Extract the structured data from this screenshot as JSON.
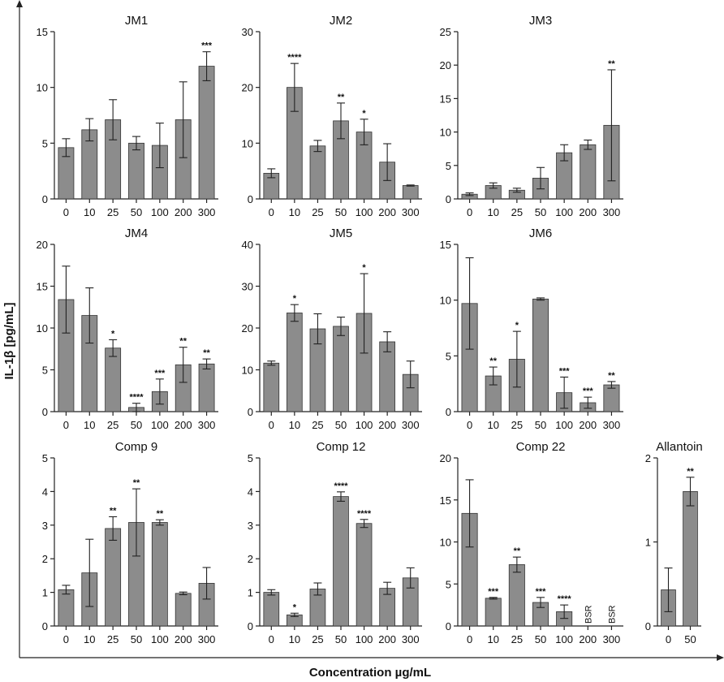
{
  "figure": {
    "ylabel": "IL-1β [pg/mL]",
    "xlabel": "Concentration µg/mL"
  },
  "colors": {
    "bar": "#8c8c8c",
    "axis": "#222222",
    "text": "#111111"
  },
  "chart_data": [
    {
      "type": "bar",
      "title": "JM1",
      "categories": [
        "0",
        "10",
        "25",
        "50",
        "100",
        "200",
        "300"
      ],
      "values": [
        4.6,
        6.2,
        7.1,
        5.0,
        4.8,
        7.1,
        11.9
      ],
      "errors": [
        0.8,
        1.0,
        1.8,
        0.6,
        2.0,
        3.4,
        1.3
      ],
      "significance": [
        "",
        "",
        "",
        "",
        "",
        "",
        "***"
      ],
      "ylim": [
        0,
        15
      ],
      "yticks": [
        "0",
        "5",
        "10",
        "15"
      ]
    },
    {
      "type": "bar",
      "title": "JM2",
      "categories": [
        "0",
        "10",
        "25",
        "50",
        "100",
        "200",
        "300"
      ],
      "values": [
        4.6,
        20.0,
        9.5,
        14.0,
        12.0,
        6.6,
        2.4
      ],
      "errors": [
        0.8,
        4.3,
        1.0,
        3.2,
        2.3,
        3.3,
        0.1
      ],
      "significance": [
        "",
        "****",
        "",
        "**",
        "*",
        "",
        ""
      ],
      "ylim": [
        0,
        30
      ],
      "yticks": [
        "0",
        "10",
        "20",
        "30"
      ]
    },
    {
      "type": "bar",
      "title": "JM3",
      "categories": [
        "0",
        "10",
        "25",
        "50",
        "100",
        "200",
        "300"
      ],
      "values": [
        0.7,
        2.0,
        1.3,
        3.1,
        6.9,
        8.1,
        11.0
      ],
      "errors": [
        0.2,
        0.4,
        0.3,
        1.6,
        1.2,
        0.7,
        8.3
      ],
      "significance": [
        "",
        "",
        "",
        "",
        "",
        "",
        "**"
      ],
      "ylim": [
        0,
        25
      ],
      "yticks": [
        "0",
        "5",
        "10",
        "15",
        "20",
        "25"
      ]
    },
    {
      "type": "bar",
      "title": "JM4",
      "categories": [
        "0",
        "10",
        "25",
        "50",
        "100",
        "200",
        "300"
      ],
      "values": [
        13.4,
        11.5,
        7.6,
        0.5,
        2.4,
        5.6,
        5.7
      ],
      "errors": [
        4.0,
        3.3,
        1.0,
        0.5,
        1.5,
        2.1,
        0.6
      ],
      "significance": [
        "",
        "",
        "*",
        "****",
        "***",
        "**",
        "**"
      ],
      "ylim": [
        0,
        20
      ],
      "yticks": [
        "0",
        "5",
        "10",
        "15",
        "20"
      ]
    },
    {
      "type": "bar",
      "title": "JM5",
      "categories": [
        "0",
        "10",
        "25",
        "50",
        "100",
        "200",
        "300"
      ],
      "values": [
        11.6,
        23.6,
        19.8,
        20.4,
        23.5,
        16.7,
        8.9
      ],
      "errors": [
        0.5,
        2.0,
        3.6,
        2.2,
        9.5,
        2.4,
        3.2
      ],
      "significance": [
        "",
        "*",
        "",
        "",
        "*",
        "",
        ""
      ],
      "ylim": [
        0,
        40
      ],
      "yticks": [
        "0",
        "10",
        "20",
        "30",
        "40"
      ]
    },
    {
      "type": "bar",
      "title": "JM6",
      "categories": [
        "0",
        "10",
        "25",
        "50",
        "100",
        "200",
        "300"
      ],
      "values": [
        9.7,
        3.2,
        4.7,
        10.1,
        1.7,
        0.8,
        2.4
      ],
      "errors": [
        4.1,
        0.8,
        2.5,
        0.1,
        1.4,
        0.5,
        0.3
      ],
      "significance": [
        "",
        "**",
        "*",
        "",
        "***",
        "***",
        "**"
      ],
      "ylim": [
        0,
        15
      ],
      "yticks": [
        "0",
        "5",
        "10",
        "15"
      ]
    },
    {
      "type": "bar",
      "title": "Comp 9",
      "categories": [
        "0",
        "10",
        "25",
        "50",
        "100",
        "200",
        "300"
      ],
      "values": [
        1.08,
        1.58,
        2.9,
        3.08,
        3.08,
        0.97,
        1.27
      ],
      "errors": [
        0.13,
        1.0,
        0.35,
        1.0,
        0.08,
        0.04,
        0.47
      ],
      "significance": [
        "",
        "",
        "**",
        "**",
        "**",
        "",
        ""
      ],
      "ylim": [
        0,
        5
      ],
      "yticks": [
        "0",
        "1",
        "2",
        "3",
        "4",
        "5"
      ]
    },
    {
      "type": "bar",
      "title": "Comp 12",
      "categories": [
        "0",
        "10",
        "25",
        "50",
        "100",
        "200",
        "300"
      ],
      "values": [
        1.0,
        0.33,
        1.1,
        3.85,
        3.05,
        1.12,
        1.43
      ],
      "errors": [
        0.08,
        0.05,
        0.18,
        0.14,
        0.12,
        0.18,
        0.3
      ],
      "significance": [
        "",
        "*",
        "",
        "****",
        "****",
        "",
        ""
      ],
      "ylim": [
        0,
        5
      ],
      "yticks": [
        "0",
        "1",
        "2",
        "3",
        "4",
        "5"
      ]
    },
    {
      "type": "bar",
      "title": "Comp 22",
      "categories": [
        "0",
        "10",
        "25",
        "50",
        "100",
        "200",
        "300"
      ],
      "values": [
        13.4,
        3.3,
        7.3,
        2.8,
        1.7,
        null,
        null
      ],
      "errors": [
        4.0,
        0.1,
        0.9,
        0.6,
        0.8,
        null,
        null
      ],
      "significance": [
        "",
        "***",
        "**",
        "***",
        "****",
        "",
        ""
      ],
      "bar_labels": [
        "",
        "",
        "",
        "",
        "",
        "BSR",
        "BSR"
      ],
      "ylim": [
        0,
        20
      ],
      "yticks": [
        "0",
        "5",
        "10",
        "15",
        "20"
      ]
    },
    {
      "type": "bar",
      "title": "Allantoin",
      "categories": [
        "0",
        "50"
      ],
      "values": [
        0.43,
        1.6
      ],
      "errors": [
        0.26,
        0.17
      ],
      "significance": [
        "",
        "**"
      ],
      "ylim": [
        0,
        2
      ],
      "yticks": [
        "0",
        "1",
        "2"
      ]
    }
  ]
}
